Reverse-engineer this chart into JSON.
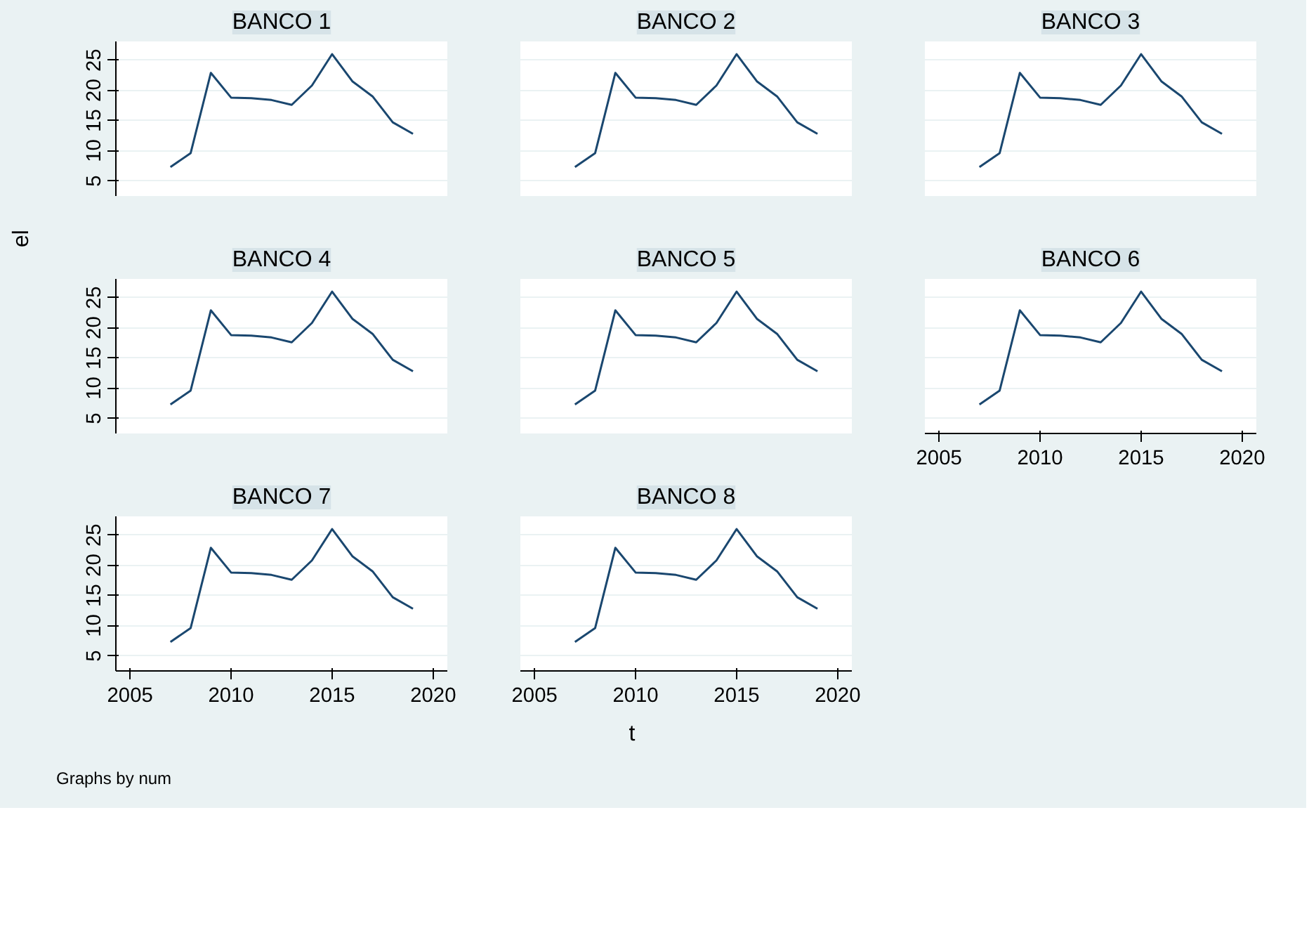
{
  "chart_data": [
    {
      "type": "line",
      "title": "BANCO 1",
      "ylabel": "el",
      "x": [
        2007,
        2008,
        2009,
        2010,
        2011,
        2012,
        2013,
        2014,
        2015,
        2016,
        2017,
        2018,
        2019
      ],
      "series": [
        {
          "color": "#1a476f",
          "values": [
            7.3,
            9.6,
            22.9,
            18.8,
            18.7,
            18.4,
            17.6,
            20.8,
            26.0,
            21.5,
            19.0,
            14.7,
            12.8
          ]
        }
      ],
      "xlim": [
        2004.3,
        2020.7
      ],
      "ylim": [
        2.5,
        28.1
      ],
      "xticks": [
        2005,
        2010,
        2015,
        2020
      ],
      "yticks": [
        5,
        10,
        15,
        20,
        25
      ],
      "grid": "y",
      "tick_labels": "y"
    },
    {
      "type": "line",
      "title": "BANCO 2",
      "x": [
        2007,
        2008,
        2009,
        2010,
        2011,
        2012,
        2013,
        2014,
        2015,
        2016,
        2017,
        2018,
        2019
      ],
      "series": [
        {
          "color": "#1a476f",
          "values": [
            7.3,
            9.6,
            22.9,
            18.8,
            18.7,
            18.4,
            17.6,
            20.8,
            26.0,
            21.5,
            19.0,
            14.7,
            12.8
          ]
        }
      ],
      "xlim": [
        2004.3,
        2020.7
      ],
      "ylim": [
        2.5,
        28.1
      ],
      "xticks": [
        2005,
        2010,
        2015,
        2020
      ],
      "yticks": [
        5,
        10,
        15,
        20,
        25
      ],
      "grid": "y",
      "tick_labels": false
    },
    {
      "type": "line",
      "title": "BANCO 3",
      "x": [
        2007,
        2008,
        2009,
        2010,
        2011,
        2012,
        2013,
        2014,
        2015,
        2016,
        2017,
        2018,
        2019
      ],
      "series": [
        {
          "color": "#1a476f",
          "values": [
            7.3,
            9.6,
            22.9,
            18.8,
            18.7,
            18.4,
            17.6,
            20.8,
            26.0,
            21.5,
            19.0,
            14.7,
            12.8
          ]
        }
      ],
      "xlim": [
        2004.3,
        2020.7
      ],
      "ylim": [
        2.5,
        28.1
      ],
      "xticks": [
        2005,
        2010,
        2015,
        2020
      ],
      "yticks": [
        5,
        10,
        15,
        20,
        25
      ],
      "grid": "y",
      "tick_labels": false
    },
    {
      "type": "line",
      "title": "BANCO 4",
      "x": [
        2007,
        2008,
        2009,
        2010,
        2011,
        2012,
        2013,
        2014,
        2015,
        2016,
        2017,
        2018,
        2019
      ],
      "series": [
        {
          "color": "#1a476f",
          "values": [
            7.3,
            9.6,
            22.9,
            18.8,
            18.7,
            18.4,
            17.6,
            20.8,
            26.0,
            21.5,
            19.0,
            14.7,
            12.8
          ]
        }
      ],
      "xlim": [
        2004.3,
        2020.7
      ],
      "ylim": [
        2.5,
        28.1
      ],
      "xticks": [
        2005,
        2010,
        2015,
        2020
      ],
      "yticks": [
        5,
        10,
        15,
        20,
        25
      ],
      "grid": "y",
      "tick_labels": "y"
    },
    {
      "type": "line",
      "title": "BANCO 5",
      "x": [
        2007,
        2008,
        2009,
        2010,
        2011,
        2012,
        2013,
        2014,
        2015,
        2016,
        2017,
        2018,
        2019
      ],
      "series": [
        {
          "color": "#1a476f",
          "values": [
            7.3,
            9.6,
            22.9,
            18.8,
            18.7,
            18.4,
            17.6,
            20.8,
            26.0,
            21.5,
            19.0,
            14.7,
            12.8
          ]
        }
      ],
      "xlim": [
        2004.3,
        2020.7
      ],
      "ylim": [
        2.5,
        28.1
      ],
      "xticks": [
        2005,
        2010,
        2015,
        2020
      ],
      "yticks": [
        5,
        10,
        15,
        20,
        25
      ],
      "grid": "y",
      "tick_labels": false
    },
    {
      "type": "line",
      "title": "BANCO 6",
      "x": [
        2007,
        2008,
        2009,
        2010,
        2011,
        2012,
        2013,
        2014,
        2015,
        2016,
        2017,
        2018,
        2019
      ],
      "series": [
        {
          "color": "#1a476f",
          "values": [
            7.3,
            9.6,
            22.9,
            18.8,
            18.7,
            18.4,
            17.6,
            20.8,
            26.0,
            21.5,
            19.0,
            14.7,
            12.8
          ]
        }
      ],
      "xlim": [
        2004.3,
        2020.7
      ],
      "ylim": [
        2.5,
        28.1
      ],
      "xticks": [
        2005,
        2010,
        2015,
        2020
      ],
      "yticks": [
        5,
        10,
        15,
        20,
        25
      ],
      "grid": "y",
      "tick_labels": "x"
    },
    {
      "type": "line",
      "title": "BANCO 7",
      "annotations": [
        "Graphs by num"
      ],
      "x": [
        2007,
        2008,
        2009,
        2010,
        2011,
        2012,
        2013,
        2014,
        2015,
        2016,
        2017,
        2018,
        2019
      ],
      "series": [
        {
          "color": "#1a476f",
          "values": [
            7.3,
            9.6,
            22.9,
            18.8,
            18.7,
            18.4,
            17.6,
            20.8,
            26.0,
            21.5,
            19.0,
            14.7,
            12.8
          ]
        }
      ],
      "xlim": [
        2004.3,
        2020.7
      ],
      "ylim": [
        2.5,
        28.1
      ],
      "xticks": [
        2005,
        2010,
        2015,
        2020
      ],
      "yticks": [
        5,
        10,
        15,
        20,
        25
      ],
      "grid": "y"
    },
    {
      "type": "line",
      "title": "BANCO 8",
      "xlabel": "t",
      "x": [
        2007,
        2008,
        2009,
        2010,
        2011,
        2012,
        2013,
        2014,
        2015,
        2016,
        2017,
        2018,
        2019
      ],
      "series": [
        {
          "color": "#1a476f",
          "values": [
            7.3,
            9.6,
            22.9,
            18.8,
            18.7,
            18.4,
            17.6,
            20.8,
            26.0,
            21.5,
            19.0,
            14.7,
            12.8
          ]
        }
      ],
      "xlim": [
        2004.3,
        2020.7
      ],
      "ylim": [
        2.5,
        28.1
      ],
      "xticks": [
        2005,
        2010,
        2015,
        2020
      ],
      "yticks": [
        5,
        10,
        15,
        20,
        25
      ],
      "grid": "y",
      "tick_labels": "x"
    }
  ]
}
